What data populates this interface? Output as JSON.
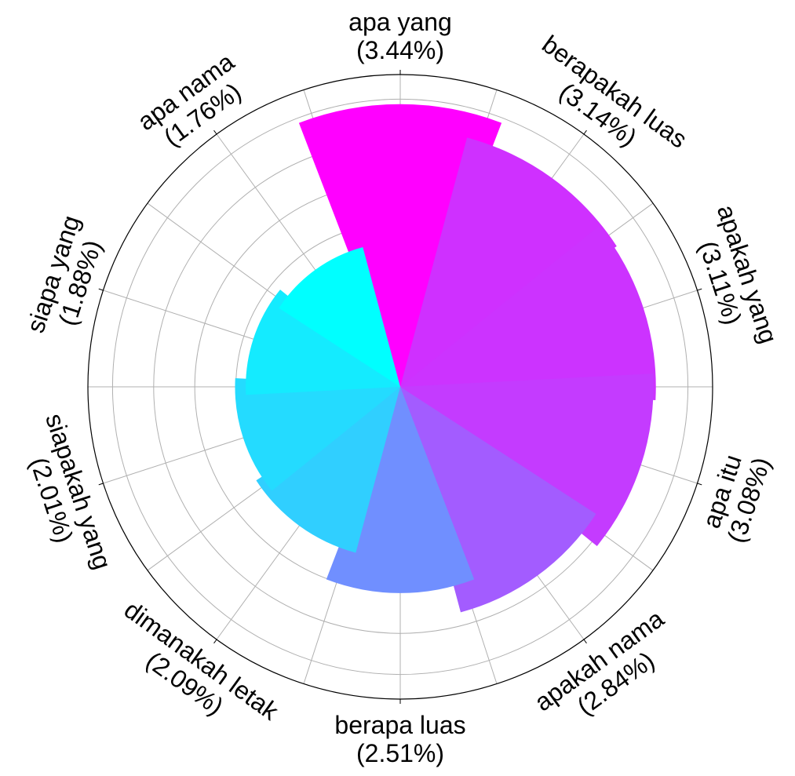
{
  "chart_data": {
    "type": "polar-bar",
    "title": "",
    "start": "top",
    "direction": "clockwise",
    "grid": true,
    "rmax": 3.8,
    "grid_rings": [
      0.5,
      1.0,
      1.5,
      2.0,
      2.5,
      3.0,
      3.5
    ],
    "categories": [
      {
        "name": "apa yang",
        "pct_label": "(3.44%)",
        "value": 3.44,
        "color": "#ff00ff"
      },
      {
        "name": "berapakah luas",
        "pct_label": "(3.14%)",
        "value": 3.14,
        "color": "#cf30ff"
      },
      {
        "name": "apakah yang",
        "pct_label": "(3.11%)",
        "value": 3.11,
        "color": "#cc33ff"
      },
      {
        "name": "apa itu",
        "pct_label": "(3.08%)",
        "value": 3.08,
        "color": "#c43bff"
      },
      {
        "name": "apakah nama",
        "pct_label": "(2.84%)",
        "value": 2.84,
        "color": "#a35cff"
      },
      {
        "name": "berapa luas",
        "pct_label": "(2.51%)",
        "value": 2.51,
        "color": "#708fff"
      },
      {
        "name": "dimanakah letak",
        "pct_label": "(2.09%)",
        "value": 2.09,
        "color": "#30cfff"
      },
      {
        "name": "siapakah yang",
        "pct_label": "(2.01%)",
        "value": 2.01,
        "color": "#24dbff"
      },
      {
        "name": "siapa yang",
        "pct_label": "(1.88%)",
        "value": 1.88,
        "color": "#14ebff"
      },
      {
        "name": "apa nama",
        "pct_label": "(1.76%)",
        "value": 1.76,
        "color": "#00ffff"
      }
    ]
  }
}
